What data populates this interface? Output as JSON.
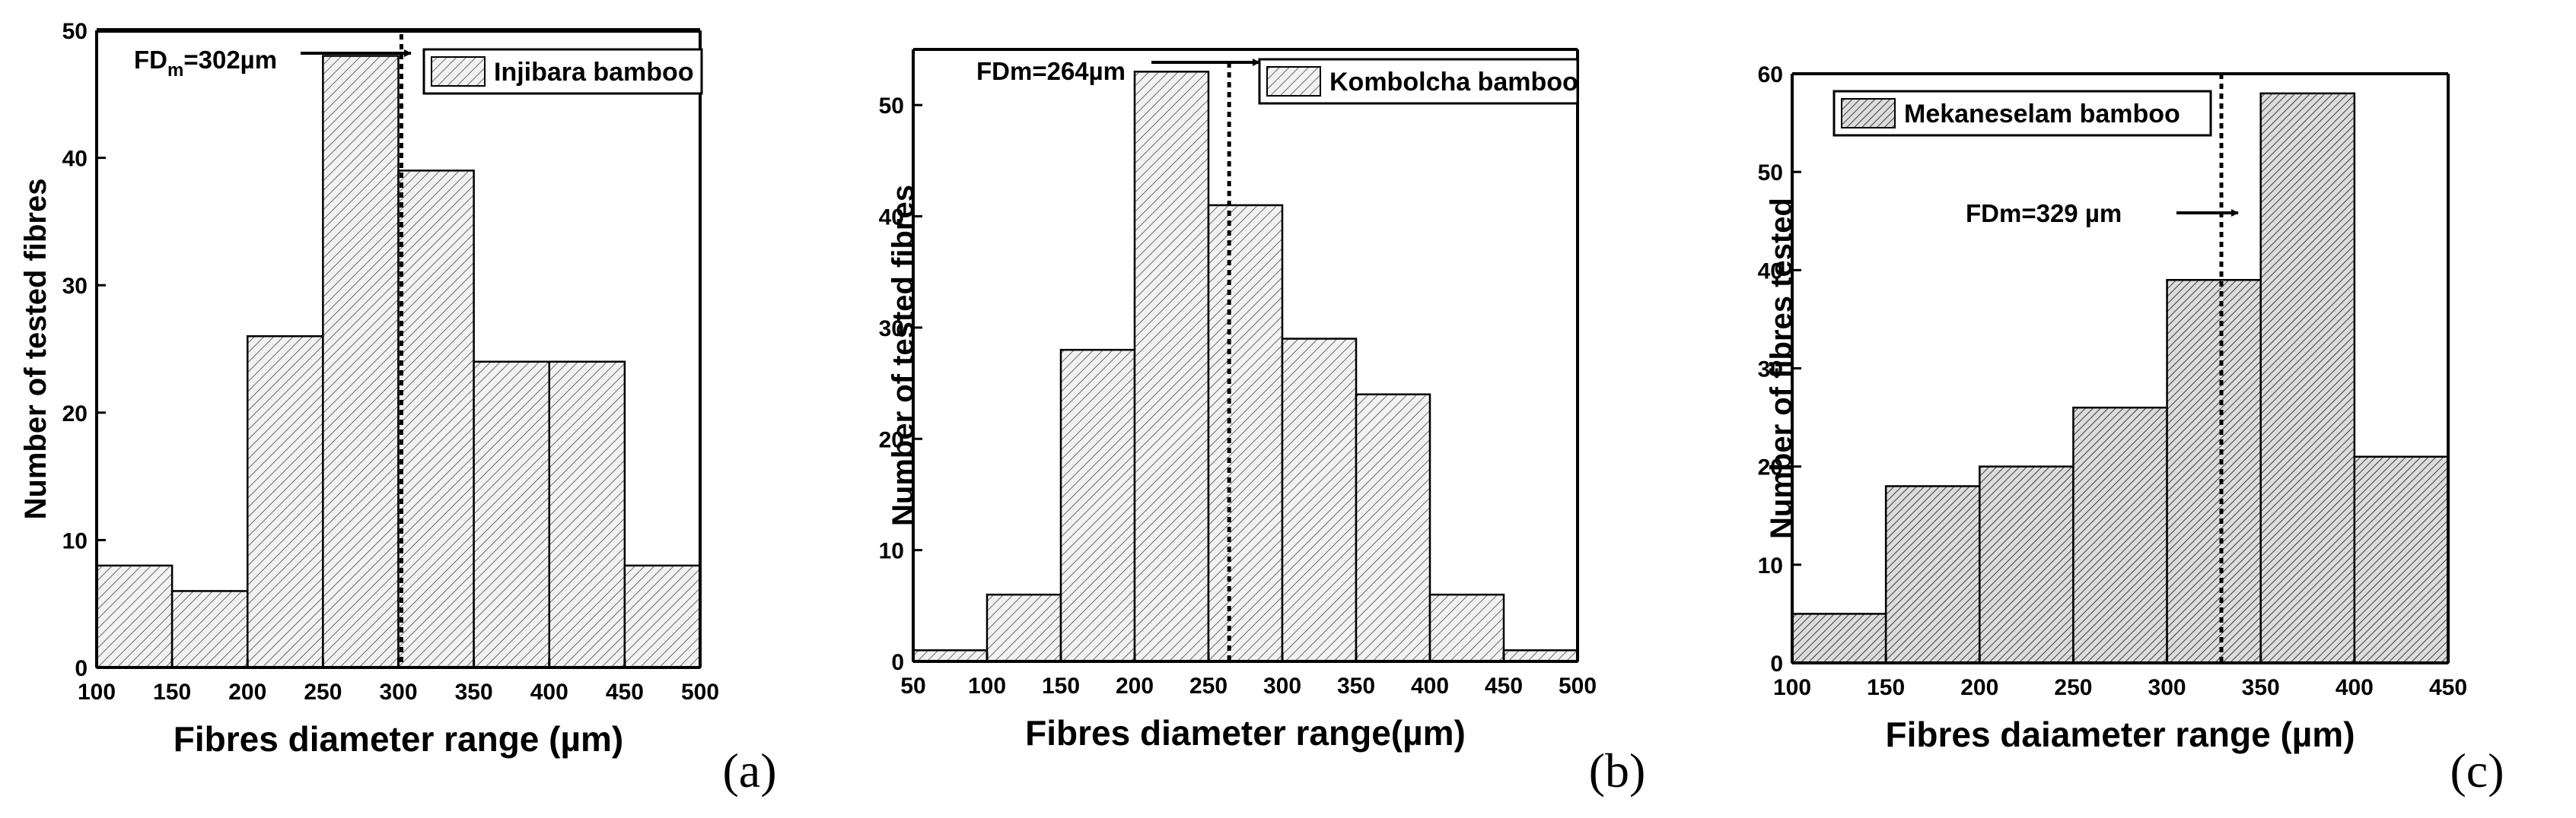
{
  "chart_data": [
    {
      "type": "bar",
      "subtype": "histogram",
      "panel_label": "(a)",
      "xlabel": "Fibres diameter range (µm)",
      "ylabel": "Number of tested fibres",
      "xlim": [
        100,
        500
      ],
      "ylim": [
        0,
        50
      ],
      "xticks": [
        "100",
        "150",
        "200",
        "250",
        "300",
        "350",
        "400",
        "450",
        "500"
      ],
      "yticks": [
        "0",
        "10",
        "20",
        "30",
        "40",
        "50"
      ],
      "bins": [
        [
          100,
          150
        ],
        [
          150,
          200
        ],
        [
          200,
          250
        ],
        [
          250,
          300
        ],
        [
          300,
          350
        ],
        [
          350,
          400
        ],
        [
          400,
          450
        ],
        [
          450,
          500
        ]
      ],
      "values": [
        8,
        6,
        26,
        48,
        39,
        24,
        24,
        8
      ],
      "series": [
        {
          "name": "Injibara bamboo",
          "values": [
            8,
            6,
            26,
            48,
            39,
            24,
            24,
            8
          ]
        }
      ],
      "legend": {
        "label": "Injibara bamboo",
        "position": "top-right"
      },
      "annotation": {
        "prefix": "FD",
        "sub": "m",
        "suffix": "=302µm",
        "x": 302
      },
      "bar_color": "#e8e8e8",
      "hatch": "diagonal"
    },
    {
      "type": "bar",
      "subtype": "histogram",
      "panel_label": "(b)",
      "xlabel": "Fibres diameter range(µm)",
      "ylabel": "Number of tested fibres",
      "xlim": [
        50,
        500
      ],
      "ylim": [
        0,
        55
      ],
      "xticks": [
        "50",
        "100",
        "150",
        "200",
        "250",
        "300",
        "350",
        "400",
        "450",
        "500"
      ],
      "yticks": [
        "0",
        "10",
        "20",
        "30",
        "40",
        "50"
      ],
      "bins": [
        [
          50,
          100
        ],
        [
          100,
          150
        ],
        [
          150,
          200
        ],
        [
          200,
          250
        ],
        [
          250,
          300
        ],
        [
          300,
          350
        ],
        [
          350,
          400
        ],
        [
          400,
          450
        ],
        [
          450,
          500
        ]
      ],
      "values": [
        1,
        6,
        28,
        53,
        41,
        29,
        24,
        6,
        1
      ],
      "series": [
        {
          "name": "Kombolcha bamboo",
          "values": [
            1,
            6,
            28,
            53,
            41,
            29,
            24,
            6,
            1
          ]
        }
      ],
      "legend": {
        "label": "Kombolcha bamboo",
        "position": "top-right"
      },
      "annotation": {
        "prefix": "FDm=264µm",
        "sub": "",
        "suffix": "",
        "x": 264
      },
      "bar_color": "#e8e8e8",
      "hatch": "diagonal"
    },
    {
      "type": "bar",
      "subtype": "histogram",
      "panel_label": "(c)",
      "xlabel": "Fibres daiameter range (µm)",
      "ylabel": "Number of fibres tested",
      "xlim": [
        100,
        450
      ],
      "ylim": [
        0,
        60
      ],
      "xticks": [
        "100",
        "150",
        "200",
        "250",
        "300",
        "350",
        "400",
        "450"
      ],
      "yticks": [
        "0",
        "10",
        "20",
        "30",
        "40",
        "50",
        "60"
      ],
      "bins": [
        [
          100,
          150
        ],
        [
          150,
          200
        ],
        [
          200,
          250
        ],
        [
          250,
          300
        ],
        [
          300,
          350
        ],
        [
          350,
          400
        ],
        [
          400,
          450
        ]
      ],
      "values": [
        5,
        18,
        20,
        26,
        39,
        58,
        21
      ],
      "series": [
        {
          "name": "Mekaneselam bamboo",
          "values": [
            5,
            18,
            20,
            26,
            39,
            58,
            21
          ]
        }
      ],
      "legend": {
        "label": "Mekaneselam bamboo",
        "position": "top-left"
      },
      "annotation": {
        "prefix": "FDm=329 µm",
        "sub": "",
        "suffix": "",
        "x": 329
      },
      "bar_color": "#e8e8e8",
      "hatch": "dense-diagonal"
    }
  ]
}
